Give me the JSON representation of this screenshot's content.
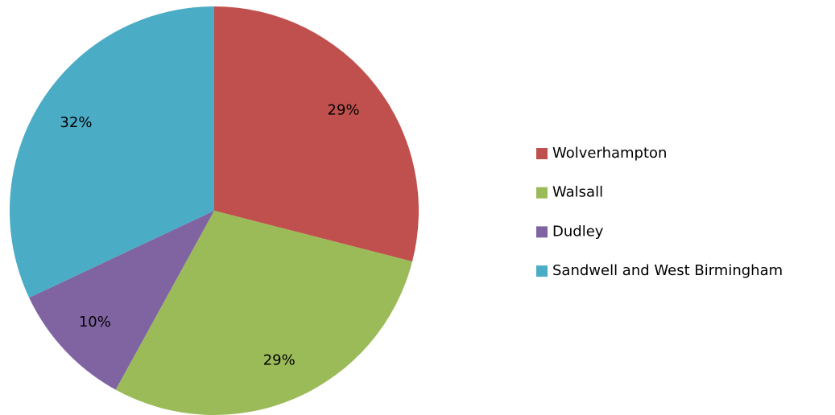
{
  "chart_data": {
    "type": "pie",
    "categories": [
      "Wolverhampton",
      "Walsall",
      "Dudley",
      "Sandwell and West Birmingham"
    ],
    "values": [
      29,
      29,
      10,
      32
    ],
    "value_labels": [
      "29%",
      "29%",
      "10%",
      "32%"
    ],
    "colors": [
      "#c0504d",
      "#9bbb59",
      "#8064a2",
      "#4bacc6"
    ],
    "legend": "right"
  }
}
